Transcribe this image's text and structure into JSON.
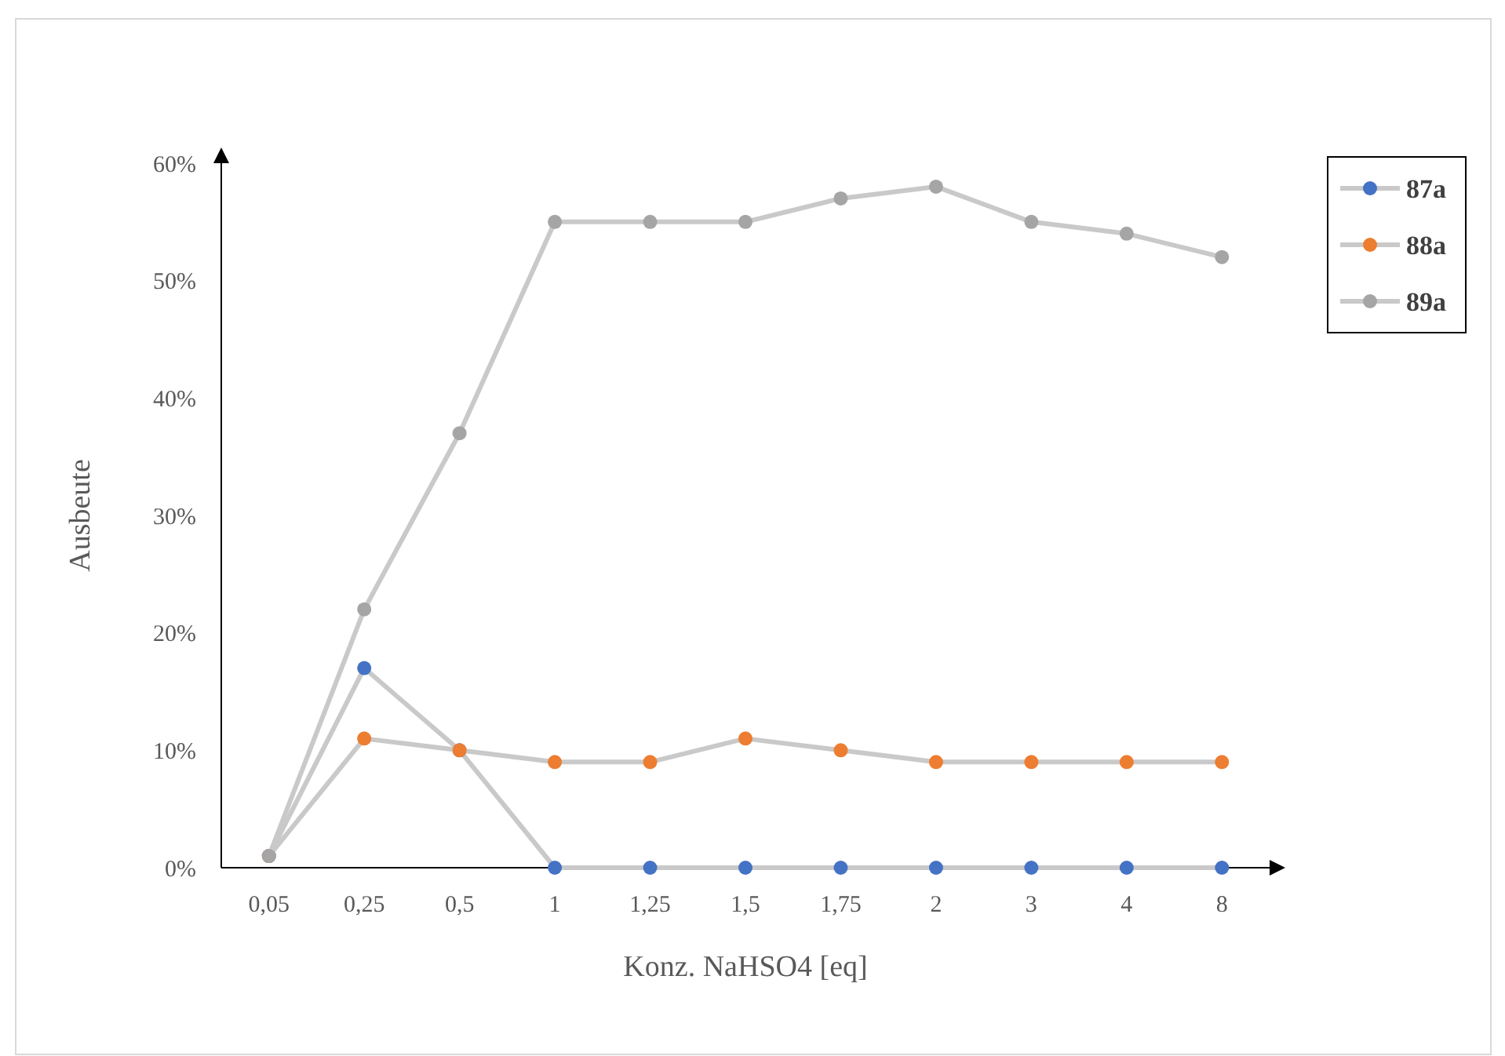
{
  "chart_data": {
    "type": "line",
    "xlabel": "Konz. NaHSO4 [eq]",
    "ylabel": "Ausbeute",
    "categories": [
      "0,05",
      "0,25",
      "0,5",
      "1",
      "1,25",
      "1,5",
      "1,75",
      "2",
      "3",
      "4",
      "8"
    ],
    "series": [
      {
        "name": "87a",
        "color": "#4472c4",
        "values": [
          1,
          17,
          10,
          0,
          0,
          0,
          0,
          0,
          0,
          0,
          0
        ]
      },
      {
        "name": "88a",
        "color": "#ed7d31",
        "values": [
          1,
          11,
          10,
          9,
          9,
          11,
          10,
          9,
          9,
          9,
          9
        ]
      },
      {
        "name": "89a",
        "color": "#a5a5a5",
        "values": [
          1,
          22,
          37,
          55,
          55,
          55,
          57,
          58,
          55,
          54,
          52
        ]
      }
    ],
    "ylim": [
      0,
      60
    ],
    "yticks": [
      {
        "value": 0,
        "label": "0%"
      },
      {
        "value": 10,
        "label": "10%"
      },
      {
        "value": 20,
        "label": "20%"
      },
      {
        "value": 30,
        "label": "30%"
      },
      {
        "value": 40,
        "label": "40%"
      },
      {
        "value": 50,
        "label": "50%"
      },
      {
        "value": 60,
        "label": "60%"
      }
    ],
    "grid": false,
    "legend": "right",
    "marker": "circle",
    "line_style": "solid"
  }
}
